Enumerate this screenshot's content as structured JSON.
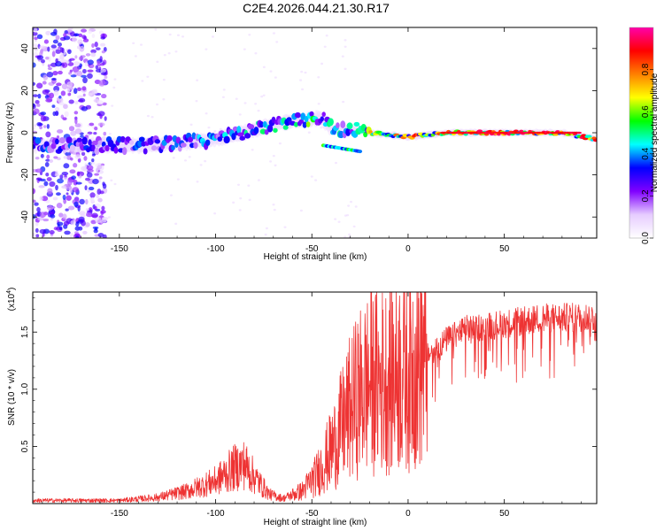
{
  "title": "C2E4.2026.044.21.30.R17",
  "chart_data": [
    {
      "type": "heatmap",
      "name": "spectrogram",
      "xlabel": "Height of straight line (km)",
      "ylabel": "Frequency (Hz)",
      "xlim": [
        -195,
        98
      ],
      "ylim": [
        -50,
        50
      ],
      "xticks": [
        -150,
        -100,
        -50,
        0,
        50
      ],
      "yticks": [
        -40,
        -20,
        0,
        20,
        40
      ],
      "colorbar": {
        "label": "Normalized spectral amplitude",
        "range": [
          0,
          1
        ],
        "ticks": [
          "0.0",
          "0.2",
          "0.4",
          "0.6",
          "0.8"
        ],
        "tick_values": [
          0.0,
          0.2,
          0.4,
          0.6,
          0.8
        ],
        "colors": [
          "#ffffff",
          "#e6ccff",
          "#8000ff",
          "#0000ff",
          "#00ffff",
          "#00ff00",
          "#ffff00",
          "#ff8000",
          "#ff0000",
          "#ff00aa"
        ]
      },
      "ridge": {
        "x": [
          -195,
          -180,
          -160,
          -140,
          -120,
          -100,
          -85,
          -70,
          -55,
          -45,
          -40,
          -30,
          -20,
          -10,
          0,
          20,
          50,
          80,
          98
        ],
        "y": [
          -6,
          -6,
          -6,
          -6,
          -5,
          -3,
          0,
          4,
          6,
          7,
          2,
          2,
          0,
          -1,
          -2,
          0,
          0,
          0,
          -3
        ],
        "amplitude": [
          0.35,
          0.3,
          0.28,
          0.3,
          0.32,
          0.35,
          0.4,
          0.4,
          0.5,
          0.45,
          0.4,
          0.4,
          0.6,
          0.7,
          0.7,
          0.8,
          0.85,
          0.85,
          0.8
        ]
      },
      "noise_region_x": [
        -195,
        -157
      ]
    },
    {
      "type": "line",
      "name": "snr",
      "xlabel": "Height of straight line (km)",
      "ylabel": "SNR (10 * v/v)",
      "multiplier_label": "(x10",
      "multiplier_exponent": "4",
      "xlim": [
        -195,
        98
      ],
      "ylim": [
        0,
        18500
      ],
      "xticks": [
        -150,
        -100,
        -50,
        0,
        50
      ],
      "yticks": [
        "0.5",
        "1.0",
        "1.5"
      ],
      "ytick_values": [
        5000,
        10000,
        15000
      ],
      "color": "#ee3333",
      "envelope": {
        "x": [
          -195,
          -150,
          -130,
          -115,
          -100,
          -90,
          -85,
          -80,
          -72,
          -65,
          -55,
          -48,
          -40,
          -35,
          -30,
          -25,
          -20,
          -15,
          -10,
          -5,
          0,
          10,
          20,
          30,
          50,
          70,
          90,
          98
        ],
        "y": [
          300,
          300,
          600,
          1200,
          2200,
          3500,
          3800,
          2600,
          900,
          500,
          1200,
          2600,
          5000,
          7000,
          9000,
          10500,
          11500,
          11500,
          12000,
          12500,
          13000,
          14000,
          15500,
          16500,
          17000,
          17500,
          17600,
          17600
        ]
      }
    }
  ]
}
